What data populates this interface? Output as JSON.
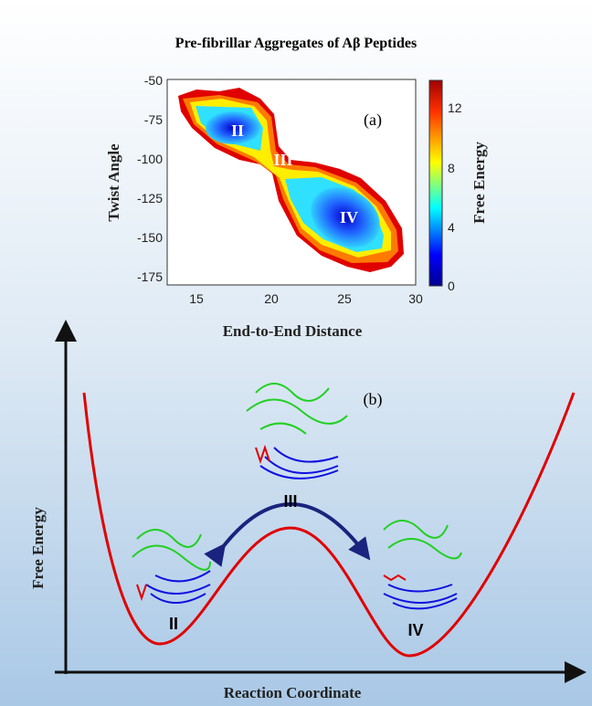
{
  "title": "Pre-fibrillar Aggregates of Aβ Peptides",
  "panel_a": {
    "label": "(a)",
    "x_label": "End-to-End Distance",
    "y_label": "Twist Angle",
    "x_ticks": [
      "15",
      "20",
      "25",
      "30"
    ],
    "y_ticks": [
      "-50",
      "-75",
      "-100",
      "-125",
      "-150",
      "-175"
    ],
    "colorbar_label": "Free Energy",
    "colorbar_ticks": [
      "12",
      "8",
      "4",
      "0"
    ],
    "states": [
      "II",
      "III",
      "IV"
    ]
  },
  "panel_b": {
    "label": "(b)",
    "x_label": "Reaction Coordinate",
    "y_label": "Free Energy",
    "states": [
      "II",
      "III",
      "IV"
    ]
  }
}
